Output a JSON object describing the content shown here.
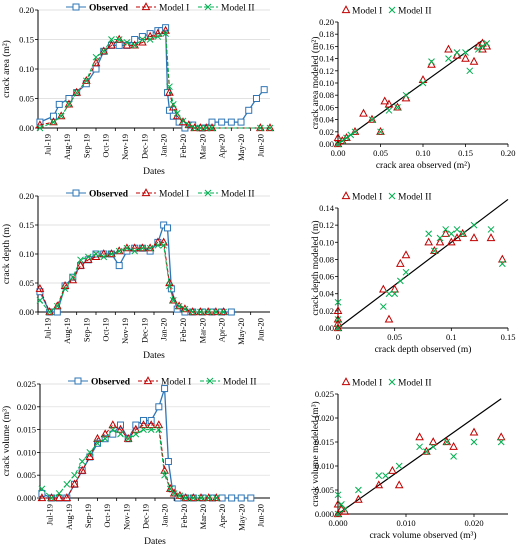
{
  "colors": {
    "observed": "#2e75b6",
    "model1": "#c00000",
    "model2": "#00b050",
    "line11": "#000000",
    "grid": "#d9d9d9"
  },
  "chart_data": [
    {
      "type": "line",
      "xlabel": "Dates",
      "ylabel": "crack area (m²)",
      "ylim": [
        0,
        0.2
      ],
      "yticks": [
        "0.00",
        "0.05",
        "0.10",
        "0.15",
        "0.20"
      ],
      "ytickvals": [
        0,
        0.05,
        0.1,
        0.15,
        0.2
      ],
      "xrange": [
        0,
        12
      ],
      "xticks": [
        "Jul-19",
        "Aug-19",
        "Sep-19",
        "Oct-19",
        "Nov-19",
        "Dec-19",
        "Jan-20",
        "Feb-20",
        "Mar-20",
        "Apr-20",
        "May-20",
        "Jun-20"
      ],
      "legend_position": "top",
      "series": [
        {
          "name": "Observed",
          "marker": "square",
          "x": [
            0.1,
            0.8,
            1.1,
            1.6,
            2.0,
            2.5,
            3.0,
            3.4,
            3.8,
            4.2,
            4.6,
            5.0,
            5.4,
            5.8,
            6.2,
            6.4,
            6.6,
            6.7,
            6.8,
            7.0,
            7.3,
            7.6,
            8.0,
            8.5,
            9.0,
            9.5,
            10.0,
            10.5,
            10.9,
            11.3,
            11.7
          ],
          "y": [
            0.01,
            0.02,
            0.04,
            0.05,
            0.06,
            0.075,
            0.1,
            0.13,
            0.14,
            0.14,
            0.14,
            0.15,
            0.155,
            0.16,
            0.165,
            0.165,
            0.17,
            0.06,
            0.03,
            0.02,
            0.01,
            0.0,
            0.005,
            0.0,
            0.01,
            0.01,
            0.01,
            0.01,
            0.03,
            0.05,
            0.065
          ]
        },
        {
          "name": "Model I",
          "marker": "triangle",
          "x": [
            0.1,
            0.8,
            1.2,
            1.6,
            2.0,
            2.5,
            3.0,
            3.4,
            3.8,
            4.2,
            4.6,
            5.0,
            5.4,
            5.8,
            6.2,
            6.6,
            6.8,
            7.0,
            7.2,
            7.5,
            7.8,
            8.1,
            8.4,
            8.7,
            9.0,
            11.5,
            12.0
          ],
          "y": [
            0.005,
            0.01,
            0.02,
            0.04,
            0.06,
            0.08,
            0.11,
            0.13,
            0.14,
            0.15,
            0.14,
            0.14,
            0.145,
            0.155,
            0.16,
            0.165,
            0.06,
            0.035,
            0.02,
            0.01,
            0.005,
            0.0,
            0.0,
            0.0,
            0.0,
            0.0,
            0.0
          ]
        },
        {
          "name": "Model II",
          "marker": "x",
          "x": [
            0.1,
            0.8,
            1.2,
            1.6,
            2.0,
            2.5,
            3.0,
            3.4,
            3.8,
            4.2,
            4.6,
            5.0,
            5.4,
            5.8,
            6.2,
            6.6,
            6.8,
            7.0,
            7.2,
            7.5,
            7.8,
            8.1,
            8.4,
            8.7,
            9.0,
            11.5,
            12.0
          ],
          "y": [
            0.0,
            0.01,
            0.02,
            0.04,
            0.06,
            0.08,
            0.12,
            0.13,
            0.15,
            0.15,
            0.145,
            0.14,
            0.15,
            0.15,
            0.155,
            0.16,
            0.07,
            0.04,
            0.025,
            0.012,
            0.005,
            0.0,
            0.0,
            0.0,
            0.0,
            0.0,
            0.0
          ]
        }
      ]
    },
    {
      "type": "scatter",
      "xlabel": "crack area observed (m²)",
      "ylabel": "crack area modeled (m²)",
      "xlim": [
        0,
        0.2
      ],
      "ylim": [
        0,
        0.2
      ],
      "xticks": [
        "0.00",
        "0.05",
        "0.10",
        "0.15",
        "0.20"
      ],
      "xtickvals": [
        0,
        0.05,
        0.1,
        0.15,
        0.2
      ],
      "yticks": [
        "0.00",
        "0.02",
        "0.04",
        "0.06",
        "0.08",
        "0.10",
        "0.12",
        "0.14",
        "0.16",
        "0.18",
        "0.20"
      ],
      "ytickvals": [
        0,
        0.02,
        0.04,
        0.06,
        0.08,
        0.1,
        0.12,
        0.14,
        0.16,
        0.18,
        0.2
      ],
      "legend_position": "top",
      "one_to_one": [
        0,
        0.17
      ],
      "series": [
        {
          "name": "Model I",
          "marker": "triangle",
          "x": [
            0,
            0,
            0.005,
            0.01,
            0.02,
            0.03,
            0.04,
            0.05,
            0.055,
            0.06,
            0.07,
            0.08,
            0.1,
            0.11,
            0.13,
            0.14,
            0.15,
            0.16,
            0.165,
            0.17,
            0.17,
            0.175
          ],
          "y": [
            0,
            0.01,
            0.005,
            0.01,
            0.02,
            0.05,
            0.04,
            0.02,
            0.07,
            0.065,
            0.06,
            0.075,
            0.105,
            0.13,
            0.155,
            0.145,
            0.14,
            0.135,
            0.16,
            0.165,
            0.155,
            0.16
          ]
        },
        {
          "name": "Model II",
          "marker": "x",
          "x": [
            0,
            0.005,
            0.01,
            0.015,
            0.02,
            0.04,
            0.05,
            0.06,
            0.07,
            0.08,
            0.1,
            0.11,
            0.13,
            0.14,
            0.15,
            0.155,
            0.165,
            0.17,
            0.175
          ],
          "y": [
            0,
            0.005,
            0.01,
            0.015,
            0.02,
            0.04,
            0.02,
            0.055,
            0.06,
            0.08,
            0.1,
            0.135,
            0.14,
            0.15,
            0.15,
            0.12,
            0.155,
            0.16,
            0.165
          ]
        }
      ]
    },
    {
      "type": "line",
      "xlabel": "Dates",
      "ylabel": "crack depth (m)",
      "ylim": [
        0,
        0.2
      ],
      "yticks": [
        "0.00",
        "0.05",
        "0.10",
        "0.15",
        "0.20"
      ],
      "ytickvals": [
        0,
        0.05,
        0.1,
        0.15,
        0.2
      ],
      "xrange": [
        0,
        12
      ],
      "xticks": [
        "Jul-19",
        "Aug-19",
        "Sep-19",
        "Oct-19",
        "Nov-19",
        "Dec-19",
        "Jan-20",
        "Feb-20",
        "Mar-20",
        "Apr-20",
        "May-20",
        "Jun-20"
      ],
      "legend_position": "top",
      "series": [
        {
          "name": "Observed",
          "marker": "square",
          "x": [
            0.1,
            0.6,
            1.0,
            1.4,
            1.8,
            2.2,
            2.6,
            3.0,
            3.4,
            3.8,
            4.2,
            4.6,
            5.0,
            5.4,
            5.8,
            6.2,
            6.5,
            6.7,
            6.9,
            7.2,
            7.6,
            8.0,
            8.5,
            9.0,
            9.5,
            10.0
          ],
          "y": [
            0.035,
            0.0,
            0.0,
            0.045,
            0.06,
            0.08,
            0.09,
            0.1,
            0.1,
            0.1,
            0.08,
            0.105,
            0.11,
            0.11,
            0.105,
            0.12,
            0.15,
            0.145,
            0.04,
            0.005,
            0.0,
            0.0,
            0.0,
            0.0,
            0.0,
            0.0
          ]
        },
        {
          "name": "Model I",
          "marker": "triangle",
          "x": [
            0.1,
            0.6,
            1.0,
            1.4,
            1.8,
            2.2,
            2.6,
            3.0,
            3.4,
            3.8,
            4.2,
            4.6,
            5.0,
            5.4,
            5.8,
            6.2,
            6.5,
            6.8,
            7.0,
            7.3,
            7.6,
            8.0,
            8.4,
            8.8,
            9.2,
            9.6
          ],
          "y": [
            0.04,
            0.0,
            0.01,
            0.045,
            0.055,
            0.08,
            0.09,
            0.095,
            0.1,
            0.1,
            0.105,
            0.11,
            0.11,
            0.11,
            0.11,
            0.12,
            0.12,
            0.05,
            0.02,
            0.01,
            0.005,
            0.0,
            0.0,
            0.0,
            0.0,
            0.0
          ]
        },
        {
          "name": "Model II",
          "marker": "x",
          "x": [
            0.1,
            0.6,
            1.0,
            1.4,
            1.8,
            2.2,
            2.6,
            3.0,
            3.4,
            3.8,
            4.2,
            4.6,
            5.0,
            5.4,
            5.8,
            6.2,
            6.5,
            6.8,
            7.0,
            7.3,
            7.6,
            8.0,
            8.4,
            8.8,
            9.2,
            9.6
          ],
          "y": [
            0.02,
            0.0,
            0.01,
            0.04,
            0.06,
            0.09,
            0.095,
            0.1,
            0.095,
            0.1,
            0.105,
            0.11,
            0.105,
            0.11,
            0.11,
            0.115,
            0.115,
            0.045,
            0.02,
            0.01,
            0.005,
            0.0,
            0.0,
            0.0,
            0.0,
            0.0
          ]
        }
      ]
    },
    {
      "type": "scatter",
      "xlabel": "crack depth observed (m)",
      "ylabel": "crack depth modeled (m)",
      "xlim": [
        0,
        0.15
      ],
      "ylim": [
        0,
        0.14
      ],
      "xticks": [
        "0",
        "0.05",
        "0.1",
        "0.15"
      ],
      "xtickvals": [
        0,
        0.05,
        0.1,
        0.15
      ],
      "yticks": [
        "0.00",
        "0.02",
        "0.04",
        "0.06",
        "0.08",
        "0.10",
        "0.12",
        "0.14"
      ],
      "ytickvals": [
        0,
        0.02,
        0.04,
        0.06,
        0.08,
        0.1,
        0.12,
        0.14
      ],
      "legend_position": "top",
      "one_to_one": [
        0,
        0.15
      ],
      "series": [
        {
          "name": "Model I",
          "marker": "triangle",
          "x": [
            0,
            0,
            0,
            0.0,
            0.04,
            0.045,
            0.05,
            0.055,
            0.06,
            0.08,
            0.085,
            0.09,
            0.095,
            0.1,
            0.105,
            0.11,
            0.12,
            0.135,
            0.145
          ],
          "y": [
            0,
            0.005,
            0.01,
            0.02,
            0.045,
            0.01,
            0.045,
            0.075,
            0.085,
            0.1,
            0.09,
            0.1,
            0.11,
            0.1,
            0.105,
            0.11,
            0.105,
            0.105,
            0.08
          ]
        },
        {
          "name": "Model II",
          "marker": "x",
          "x": [
            0,
            0,
            0.0,
            0.04,
            0.045,
            0.05,
            0.055,
            0.06,
            0.08,
            0.085,
            0.09,
            0.095,
            0.1,
            0.105,
            0.11,
            0.12,
            0.135,
            0.145
          ],
          "y": [
            0,
            0.01,
            0.03,
            0.025,
            0.04,
            0.04,
            0.055,
            0.065,
            0.11,
            0.09,
            0.105,
            0.115,
            0.11,
            0.115,
            0.11,
            0.12,
            0.115,
            0.075
          ]
        }
      ]
    },
    {
      "type": "line",
      "xlabel": "Dates",
      "ylabel": "crack volume (m³)",
      "ylim": [
        0,
        0.025
      ],
      "yticks": [
        "0.000",
        "0.005",
        "0.010",
        "0.015",
        "0.020",
        "0.025"
      ],
      "ytickvals": [
        0,
        0.005,
        0.01,
        0.015,
        0.02,
        0.025
      ],
      "xrange": [
        0,
        12
      ],
      "xticks": [
        "Jul-19",
        "Aug-19",
        "Sep-19",
        "Oct-19",
        "Nov-19",
        "Dec-19",
        "Jan-20",
        "Feb-20",
        "Mar-20",
        "Apr-20",
        "May-20",
        "Jun-20"
      ],
      "legend_position": "top",
      "series": [
        {
          "name": "Observed",
          "marker": "square",
          "x": [
            0.1,
            0.6,
            1.0,
            1.4,
            1.8,
            2.2,
            2.6,
            3.0,
            3.4,
            3.8,
            4.2,
            4.6,
            5.0,
            5.4,
            5.8,
            6.2,
            6.5,
            6.7,
            6.9,
            7.2,
            7.6,
            8.0,
            8.5,
            9.0,
            9.5,
            10.0,
            10.5,
            11.0
          ],
          "y": [
            0.001,
            0.0,
            0.0,
            0.0,
            0.003,
            0.006,
            0.009,
            0.012,
            0.013,
            0.014,
            0.016,
            0.013,
            0.016,
            0.017,
            0.017,
            0.02,
            0.024,
            0.008,
            0.002,
            0.0,
            0.0,
            0.0,
            0.0,
            0.0,
            0.0,
            0.0,
            0.0,
            0.0
          ]
        },
        {
          "name": "Model I",
          "marker": "triangle",
          "x": [
            0.1,
            0.6,
            1.0,
            1.4,
            1.8,
            2.2,
            2.6,
            3.0,
            3.4,
            3.8,
            4.2,
            4.6,
            5.0,
            5.4,
            5.8,
            6.2,
            6.5,
            6.8,
            7.0,
            7.3,
            7.6,
            8.0,
            8.4,
            8.8,
            9.2
          ],
          "y": [
            0.0,
            0.0,
            0.0,
            0.0,
            0.003,
            0.006,
            0.009,
            0.013,
            0.014,
            0.016,
            0.015,
            0.013,
            0.015,
            0.016,
            0.016,
            0.016,
            0.006,
            0.002,
            0.001,
            0.0005,
            0.0,
            0.0,
            0.0,
            0.0,
            0.0
          ]
        },
        {
          "name": "Model II",
          "marker": "x",
          "x": [
            0.1,
            0.6,
            1.0,
            1.4,
            1.8,
            2.2,
            2.6,
            3.0,
            3.4,
            3.8,
            4.2,
            4.6,
            5.0,
            5.4,
            5.8,
            6.2,
            6.5,
            6.8,
            7.0,
            7.3,
            7.6,
            8.0,
            8.4,
            8.8,
            9.2
          ],
          "y": [
            0.002,
            0.0,
            0.001,
            0.003,
            0.005,
            0.008,
            0.01,
            0.012,
            0.013,
            0.015,
            0.014,
            0.013,
            0.014,
            0.015,
            0.015,
            0.015,
            0.005,
            0.002,
            0.001,
            0.0005,
            0.0,
            0.0,
            0.0,
            0.0,
            0.0
          ]
        }
      ]
    },
    {
      "type": "scatter",
      "xlabel": "crack volume observed (m³)",
      "ylabel": "crack volume modeled (m³)",
      "xlim": [
        0,
        0.025
      ],
      "ylim": [
        0,
        0.025
      ],
      "xticks": [
        "0.000",
        "0.010",
        "0.020"
      ],
      "xtickvals": [
        0,
        0.01,
        0.02
      ],
      "yticks": [
        "0.000",
        "0.005",
        "0.010",
        "0.015",
        "0.020",
        "0.025"
      ],
      "ytickvals": [
        0,
        0.005,
        0.01,
        0.015,
        0.02,
        0.025
      ],
      "legend_position": "top",
      "one_to_one": [
        0,
        0.024
      ],
      "series": [
        {
          "name": "Model I",
          "marker": "triangle",
          "x": [
            0,
            0,
            0.0005,
            0.001,
            0.003,
            0.006,
            0.008,
            0.009,
            0.012,
            0.013,
            0.014,
            0.016,
            0.017,
            0.02,
            0.024
          ],
          "y": [
            0,
            0.002,
            0.001,
            0.0005,
            0.003,
            0.006,
            0.009,
            0.006,
            0.016,
            0.013,
            0.015,
            0.015,
            0.014,
            0.017,
            0.016
          ]
        },
        {
          "name": "Model II",
          "marker": "x",
          "x": [
            0,
            0,
            0.0005,
            0.001,
            0.003,
            0.006,
            0.007,
            0.009,
            0.012,
            0.013,
            0.014,
            0.016,
            0.017,
            0.02,
            0.024
          ],
          "y": [
            0,
            0.004,
            0.002,
            0.001,
            0.005,
            0.008,
            0.008,
            0.01,
            0.014,
            0.013,
            0.014,
            0.015,
            0.012,
            0.015,
            0.015
          ]
        }
      ]
    }
  ]
}
